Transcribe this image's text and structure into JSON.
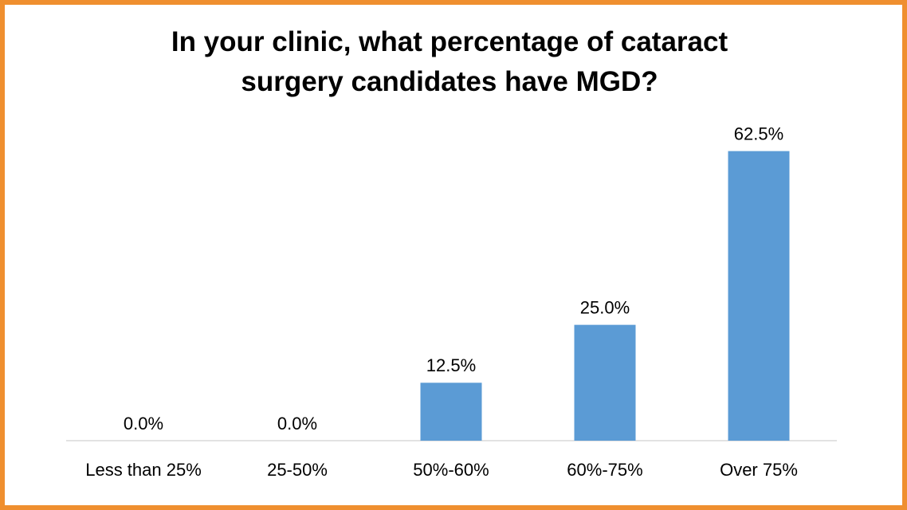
{
  "chart_data": {
    "type": "bar",
    "title": "In your clinic, what percentage of cataract surgery candidates have MGD?",
    "categories": [
      "Less than 25%",
      "25-50%",
      "50%-60%",
      "60%-75%",
      "Over 75%"
    ],
    "values": [
      0,
      0,
      12.5,
      25,
      62.5
    ],
    "value_labels": [
      "0.0%",
      "0.0%",
      "12.5%",
      "25.0%",
      "62.5%"
    ],
    "color": "#5b9bd5",
    "ylim": [
      0,
      70
    ],
    "grid": false
  }
}
